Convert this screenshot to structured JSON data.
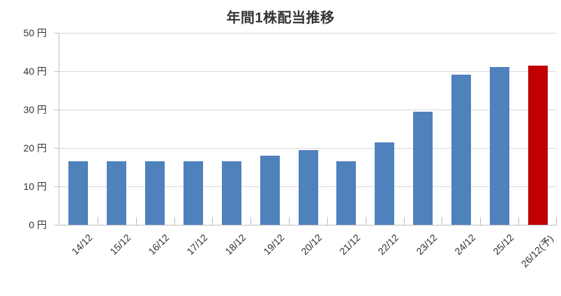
{
  "title": "年間1株配当推移",
  "colors": {
    "bar": "#4F81BD",
    "forecast_bar": "#C00000",
    "gridline": "#D9D9D9",
    "axis": "#BFBFBF",
    "text": "#333333"
  },
  "y_axis": {
    "unit": "円",
    "tick_labels": [
      "50 円",
      "40 円",
      "30 円",
      "20 円",
      "10 円",
      "0 円"
    ]
  },
  "chart_data": {
    "type": "bar",
    "title": "年間1株配当推移",
    "categories": [
      "14/12",
      "15/12",
      "16/12",
      "17/12",
      "18/12",
      "19/12",
      "20/12",
      "21/12",
      "22/12",
      "23/12",
      "24/12",
      "25/12",
      "26/12(予)"
    ],
    "values": [
      16.5,
      16.5,
      16.5,
      16.5,
      16.5,
      18,
      19.5,
      16.5,
      21.5,
      29.5,
      39,
      41,
      41.5
    ],
    "unit": "円",
    "ylabel": "円",
    "ylim": [
      0,
      50
    ],
    "ytick_step": 10,
    "grid": true,
    "legend": false,
    "bar_color": "#4F81BD",
    "forecast_index": 12,
    "forecast_color": "#C00000",
    "forecast_label": "26/12(予)"
  }
}
